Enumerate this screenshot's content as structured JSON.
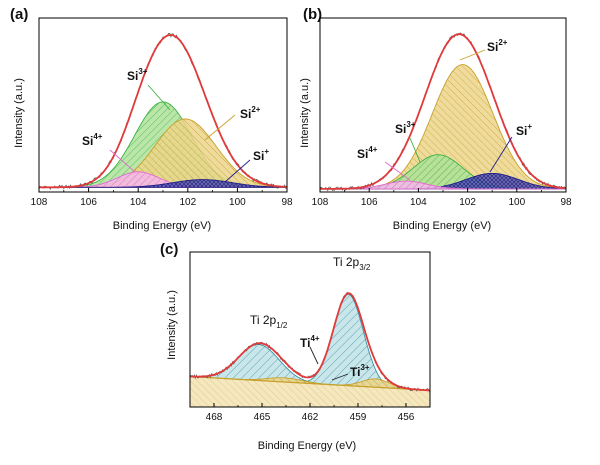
{
  "chart_data": [
    {
      "type": "line",
      "panel_label": "(a)",
      "xlabel": "Binding Energy (eV)",
      "ylabel": "Intensity (a.u.)",
      "xlim": [
        108,
        98
      ],
      "x_reversed": true,
      "xticks": [
        108,
        106,
        104,
        102,
        100,
        98
      ],
      "baseline_level": 0.03,
      "envelope": {
        "name": "fit envelope",
        "color": "#e03a3a"
      },
      "components": [
        {
          "name": "Si",
          "charge": "3+",
          "center": 103.0,
          "amplitude": 0.55,
          "fwhm": 2.7,
          "color": "#3cb043",
          "fill": "#aee39a"
        },
        {
          "name": "Si",
          "charge": "2+",
          "center": 102.1,
          "amplitude": 0.44,
          "fwhm": 2.9,
          "color": "#c8a02a",
          "fill": "#ecd58a"
        },
        {
          "name": "Si",
          "charge": "4+",
          "center": 104.0,
          "amplitude": 0.1,
          "fwhm": 2.0,
          "color": "#e26ad0",
          "fill": "#f5b8ec"
        },
        {
          "name": "Si",
          "charge": "+",
          "center": 101.4,
          "amplitude": 0.05,
          "fwhm": 2.8,
          "color": "#20208a",
          "fill": "#3a3aa8"
        }
      ],
      "annotations": [
        {
          "name": "Si",
          "charge": "3+",
          "component": 0
        },
        {
          "name": "Si",
          "charge": "2+",
          "component": 1
        },
        {
          "name": "Si",
          "charge": "4+",
          "component": 2
        },
        {
          "name": "Si",
          "charge": "+",
          "component": 3
        }
      ]
    },
    {
      "type": "line",
      "panel_label": "(b)",
      "xlabel": "Binding Energy (eV)",
      "ylabel": "Intensity (a.u.)",
      "xlim": [
        108,
        98
      ],
      "x_reversed": true,
      "xticks": [
        108,
        106,
        104,
        102,
        100,
        98
      ],
      "baseline_level": 0.02,
      "envelope": {
        "name": "fit envelope",
        "color": "#e03a3a"
      },
      "components": [
        {
          "name": "Si",
          "charge": "2+",
          "center": 102.2,
          "amplitude": 0.8,
          "fwhm": 2.9,
          "color": "#c8a02a",
          "fill": "#ecd58a"
        },
        {
          "name": "Si",
          "charge": "3+",
          "center": 103.2,
          "amplitude": 0.22,
          "fwhm": 2.4,
          "color": "#3cb043",
          "fill": "#aee39a"
        },
        {
          "name": "Si",
          "charge": "4+",
          "center": 104.5,
          "amplitude": 0.05,
          "fwhm": 2.0,
          "color": "#e26ad0",
          "fill": "#f5b8ec"
        },
        {
          "name": "Si",
          "charge": "+",
          "center": 101.0,
          "amplitude": 0.1,
          "fwhm": 2.5,
          "color": "#20208a",
          "fill": "#3a3aa8"
        }
      ],
      "annotations": [
        {
          "name": "Si",
          "charge": "2+",
          "component": 0
        },
        {
          "name": "Si",
          "charge": "3+",
          "component": 1
        },
        {
          "name": "Si",
          "charge": "4+",
          "component": 2
        },
        {
          "name": "Si",
          "charge": "+",
          "component": 3
        }
      ]
    },
    {
      "type": "line",
      "panel_label": "(c)",
      "xlabel": "Binding Energy (eV)",
      "ylabel": "Intensity (a.u.)",
      "xlim": [
        469.5,
        454.5
      ],
      "x_reversed": true,
      "xticks": [
        468,
        465,
        462,
        459,
        456
      ],
      "baseline": {
        "x": [
          469.5,
          454.5
        ],
        "y": [
          0.22,
          0.12
        ]
      },
      "envelope": {
        "name": "fit envelope",
        "color": "#e03a3a"
      },
      "components": [
        {
          "name": "Ti 2p",
          "orbital": "3/2",
          "charge": "4+",
          "center": 459.6,
          "amplitude": 0.66,
          "fwhm": 2.2,
          "color": "#3b8fa0",
          "fill": "#9fd1d8"
        },
        {
          "name": "Ti 2p",
          "orbital": "1/2",
          "charge": "4+",
          "center": 465.2,
          "amplitude": 0.26,
          "fwhm": 3.0,
          "color": "#3b8fa0",
          "fill": "#9fd1d8"
        },
        {
          "name": "Ti",
          "charge": "3+",
          "center": 457.9,
          "amplitude": 0.06,
          "fwhm": 2.0,
          "color": "#c8a02a",
          "fill": "#ecd58a"
        },
        {
          "name": "Ti",
          "charge": "3+",
          "center": 463.6,
          "amplitude": 0.03,
          "fwhm": 2.5,
          "color": "#c8a02a",
          "fill": "#ecd58a"
        }
      ],
      "annotations": [
        {
          "name": "Ti 2p",
          "sub": "3/2"
        },
        {
          "name": "Ti 2p",
          "sub": "1/2"
        },
        {
          "name": "Ti",
          "charge": "4+"
        },
        {
          "name": "Ti",
          "charge": "3+"
        }
      ]
    }
  ]
}
